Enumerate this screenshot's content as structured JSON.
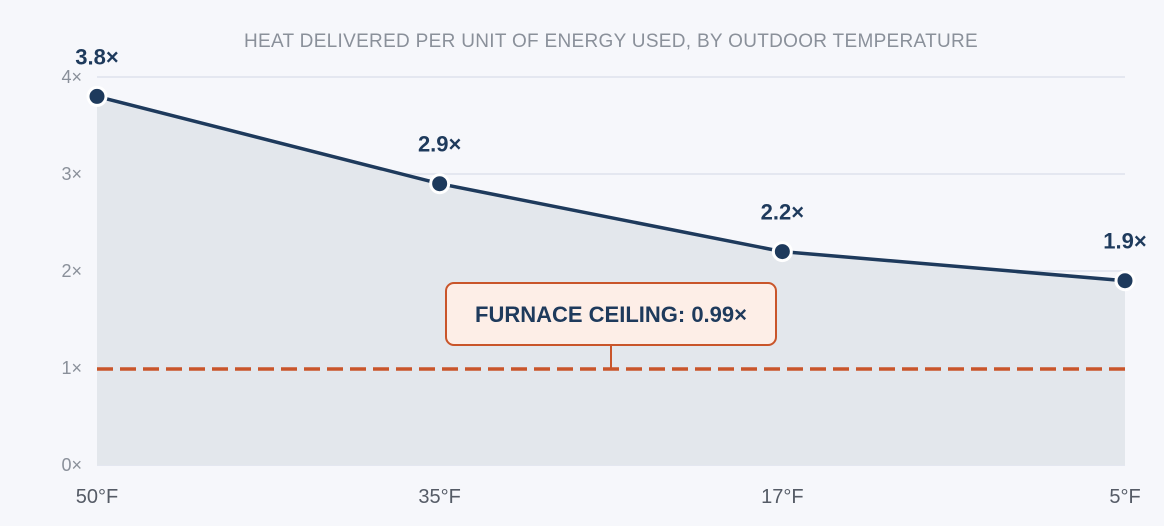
{
  "chart_data": {
    "type": "area",
    "title": "HEAT DELIVERED PER UNIT OF ENERGY USED, BY OUTDOOR TEMPERATURE",
    "xlabel": "",
    "ylabel": "",
    "categories": [
      "50°F",
      "35°F",
      "17°F",
      "5°F"
    ],
    "y_ticks": [
      "0×",
      "1×",
      "2×",
      "3×",
      "4×"
    ],
    "ylim": [
      0,
      4
    ],
    "grid": true,
    "series": [
      {
        "values": [
          3.8,
          2.9,
          2.2,
          1.9
        ],
        "data_labels": [
          "3.8×",
          "2.9×",
          "2.2×",
          "1.9×"
        ]
      }
    ],
    "reference_line": {
      "value": 0.99,
      "label": "FURNACE CEILING: 0.99×"
    },
    "colors": {
      "line": "#1e3a5c",
      "area": "#e3e7ec",
      "grid": "#dde2ec",
      "reference": "#c9552a",
      "callout_fill": "#fdeee7"
    }
  }
}
